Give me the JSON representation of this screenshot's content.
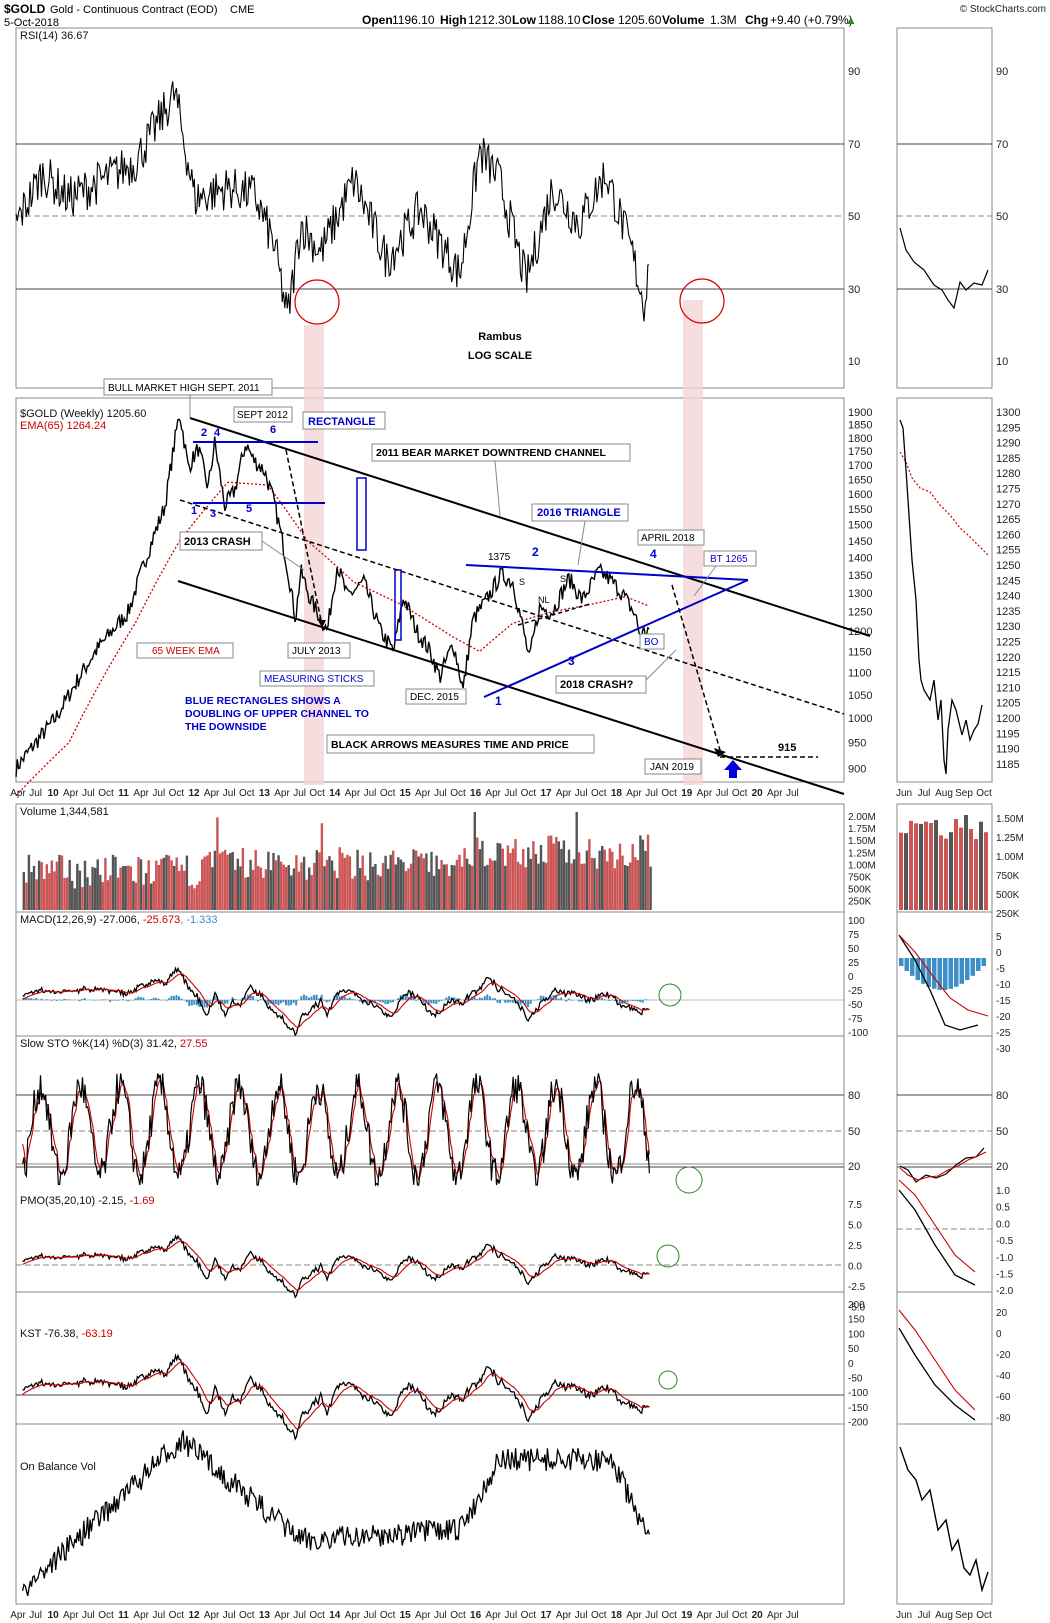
{
  "header": {
    "symbol": "$GOLD",
    "name": "Gold - Continuous Contract (EOD)",
    "exchange": "CME",
    "date": "5-Oct-2018",
    "open_label": "Open",
    "open": "1196.10",
    "high_label": "High",
    "high": "1212.30",
    "low_label": "Low",
    "low": "1188.10",
    "close_label": "Close",
    "close": "1205.60",
    "volume_label": "Volume",
    "volume": "1.3M",
    "chg_label": "Chg",
    "chg": "+9.40 (+0.79%)",
    "watermark": "© StockCharts.com"
  },
  "colors": {
    "price": "#000000",
    "ema": "#cc0000",
    "blue_annotation": "#0000cc",
    "up_volume": "#cc5555",
    "down_volume": "#555555",
    "macd_hist": "#3b8fc4",
    "highlight_band": "#f4d6d6",
    "circle_red": "#dd0000",
    "circle_green": "#2a8a2a"
  },
  "panels": {
    "rsi": {
      "title": "RSI(14) 36.67",
      "ticks": [
        "90",
        "70",
        "50",
        "30",
        "10"
      ]
    },
    "price": {
      "title": "$GOLD (Weekly) 1205.60",
      "ema_title": "EMA(65) 1264.24",
      "ticks": [
        "1900",
        "1850",
        "1800",
        "1750",
        "1700",
        "1650",
        "1600",
        "1550",
        "1500",
        "1450",
        "1400",
        "1350",
        "1300",
        "1250",
        "1200",
        "1150",
        "1100",
        "1050",
        "1000",
        "950",
        "900"
      ],
      "side_ticks": [
        "1300",
        "1295",
        "1290",
        "1285",
        "1280",
        "1275",
        "1270",
        "1265",
        "1260",
        "1255",
        "1250",
        "1245",
        "1240",
        "1235",
        "1230",
        "1225",
        "1220",
        "1215",
        "1210",
        "1205",
        "1200",
        "1195",
        "1190",
        "1185"
      ]
    },
    "volume": {
      "title": "Volume 1,344,581",
      "ticks": [
        "2.00M",
        "1.75M",
        "1.50M",
        "1.25M",
        "1.00M",
        "750K",
        "500K",
        "250K"
      ],
      "side_ticks": [
        "1.50M",
        "1.25M",
        "1.00M",
        "750K",
        "500K",
        "250K"
      ]
    },
    "macd": {
      "title_a": "MACD(12,26,9) -27.006, ",
      "title_b": "-25.673",
      "title_c": ", -1.333",
      "ticks": [
        "100",
        "75",
        "50",
        "25",
        "0",
        "-25",
        "-50",
        "-75",
        "-100"
      ],
      "side_ticks": [
        "5",
        "0",
        "-5",
        "-10",
        "-15",
        "-20",
        "-25",
        "-30"
      ]
    },
    "sto": {
      "title_a": "Slow STO %K(14) %D(3) 31.42, ",
      "title_b": "27.55",
      "ticks": [
        "80",
        "50",
        "20"
      ]
    },
    "pmo": {
      "title_a": "PMO(35,20,10) -2.15, ",
      "title_b": "-1.69",
      "ticks": [
        "7.5",
        "5.0",
        "2.5",
        "0.0",
        "-2.5",
        "-5.0"
      ],
      "side_ticks": [
        "1.0",
        "0.5",
        "0.0",
        "-0.5",
        "-1.0",
        "-1.5",
        "-2.0"
      ]
    },
    "kst": {
      "title_a": "KST -76.38, ",
      "title_b": "-63.19",
      "ticks": [
        "200",
        "150",
        "100",
        "50",
        "0",
        "-50",
        "-100",
        "-150",
        "-200"
      ],
      "side_ticks": [
        "20",
        "0",
        "-20",
        "-40",
        "-60",
        "-80"
      ]
    },
    "obv": {
      "title": "On Balance Vol"
    }
  },
  "x_axis": {
    "main_labels": [
      "Apr",
      "Jul",
      "10",
      "Apr",
      "Jul",
      "Oct",
      "11",
      "Apr",
      "Jul",
      "Oct",
      "12",
      "Apr",
      "Jul",
      "Oct",
      "13",
      "Apr",
      "Jul",
      "Oct",
      "14",
      "Apr",
      "Jul",
      "Oct",
      "15",
      "Apr",
      "Jul",
      "Oct",
      "16",
      "Apr",
      "Jul",
      "Oct",
      "17",
      "Apr",
      "Jul",
      "Oct",
      "18",
      "Apr",
      "Jul",
      "Oct",
      "19",
      "Apr",
      "Jul",
      "Oct",
      "20",
      "Apr",
      "Jul"
    ],
    "side_labels": [
      "Jun",
      "Jul",
      "Aug",
      "Sep",
      "Oct"
    ]
  },
  "annotations": {
    "bull_high": "BULL MARKET HIGH SEPT. 2011",
    "sept_2012": "SEPT 2012",
    "rectangle": "RECTANGLE",
    "bear_channel": "2011 BEAR MARKET DOWNTREND  CHANNEL",
    "triangle_2016": "2016 TRIANGLE",
    "crash_2013": "2013 CRASH",
    "april_2018": "APRIL 2018",
    "bt_1265": "BT 1265",
    "level_1375": "1375",
    "bo": "BO",
    "july_2013": "JULY 2013",
    "measuring_sticks": "MEASURING STICKS",
    "dec_2015": "DEC. 2015",
    "crash_2018": "2018 CRASH?",
    "ema_label": "65 WEEK EMA",
    "blue_note_1": "BLUE RECTANGLES SHOWS A",
    "blue_note_2": "DOUBLING OF UPPER CHANNEL TO",
    "blue_note_3": "THE DOWNSIDE",
    "black_arrows": "BLACK ARROWS MEASURES TIME AND PRICE",
    "jan_2019": "JAN 2019",
    "target_915": "915",
    "rambus": "Rambus",
    "log_scale": "LOG SCALE",
    "rect_points": [
      "2",
      "4",
      "6",
      "1",
      "3",
      "5"
    ],
    "tri_points": [
      "2",
      "4",
      "1",
      "3"
    ],
    "hs_labels": [
      "S",
      "S",
      "NL"
    ]
  },
  "chart_data": {
    "type": "line",
    "title": "$GOLD Gold - Continuous Contract (EOD) CME",
    "x_range": [
      "2009-04",
      "2021-07"
    ],
    "price_scale": "log",
    "price_series": {
      "name": "$GOLD (Weekly)",
      "x": [
        2009.2,
        2009.8,
        2010.4,
        2010.9,
        2011.2,
        2011.45,
        2011.67,
        2011.8,
        2011.95,
        2012.1,
        2012.2,
        2012.35,
        2012.5,
        2012.67,
        2012.78,
        2012.95,
        2013.1,
        2013.28,
        2013.42,
        2013.5,
        2013.65,
        2013.9,
        2014.05,
        2014.2,
        2014.45,
        2014.7,
        2014.9,
        2015.05,
        2015.25,
        2015.45,
        2015.6,
        2015.8,
        2015.95,
        2016.1,
        2016.3,
        2016.52,
        2016.7,
        2016.95,
        2017.1,
        2017.3,
        2017.55,
        2017.75,
        2018.0,
        2018.15,
        2018.35,
        2018.55,
        2018.62,
        2018.76
      ],
      "y": [
        900,
        1000,
        1150,
        1250,
        1420,
        1560,
        1900,
        1690,
        1760,
        1620,
        1780,
        1560,
        1610,
        1780,
        1720,
        1680,
        1570,
        1390,
        1230,
        1360,
        1280,
        1200,
        1380,
        1290,
        1330,
        1200,
        1150,
        1290,
        1200,
        1150,
        1090,
        1170,
        1060,
        1230,
        1280,
        1350,
        1330,
        1130,
        1260,
        1250,
        1340,
        1280,
        1360,
        1340,
        1300,
        1240,
        1190,
        1205.6
      ]
    },
    "ema_series": {
      "name": "EMA(65)",
      "x": [
        2009.2,
        2010.0,
        2011.0,
        2011.67,
        2012.4,
        2013.0,
        2013.6,
        2014.3,
        2015.0,
        2015.8,
        2016.2,
        2016.7,
        2017.3,
        2017.9,
        2018.4,
        2018.76
      ],
      "y": [
        850,
        950,
        1220,
        1450,
        1640,
        1630,
        1450,
        1330,
        1270,
        1185,
        1150,
        1220,
        1250,
        1270,
        1290,
        1264.24
      ]
    },
    "rsi_series": {
      "name": "RSI(14)",
      "x": [
        2009.2,
        2009.6,
        2010.0,
        2010.5,
        2011.0,
        2011.6,
        2011.9,
        2012.4,
        2012.8,
        2013.1,
        2013.3,
        2013.5,
        2013.8,
        2014.3,
        2014.8,
        2015.3,
        2015.9,
        2016.2,
        2016.5,
        2016.9,
        2017.3,
        2017.7,
        2018.1,
        2018.5,
        2018.68,
        2018.76
      ],
      "y": [
        48,
        62,
        55,
        60,
        65,
        84,
        55,
        58,
        56,
        42,
        22,
        48,
        40,
        60,
        38,
        52,
        34,
        68,
        60,
        32,
        58,
        48,
        62,
        40,
        26,
        36.67
      ]
    },
    "trendlines": [
      {
        "name": "2011 BEAR MARKET DOWNTREND  CHANNEL",
        "x": [
          2011.67,
          2021.6
        ],
        "y": [
          1880,
          1180
        ]
      },
      {
        "name": "2016 TRIANGLE",
        "x": [
          2016.5,
          2019.1
        ],
        "y": [
          1375,
          1320
        ]
      },
      {
        "name": "915",
        "x": [
          2019.0,
          2019.9
        ],
        "y": [
          915,
          915
        ]
      }
    ]
  }
}
